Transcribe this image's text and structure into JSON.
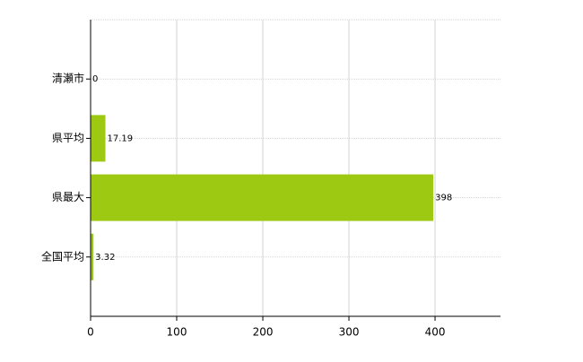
{
  "chart_data": {
    "type": "bar",
    "orientation": "horizontal",
    "categories": [
      "清瀬市",
      "県平均",
      "県最大",
      "全国平均"
    ],
    "values": [
      0,
      17.19,
      398,
      3.32
    ],
    "color": "#9dc913",
    "xlim": [
      0,
      476
    ],
    "xticks": [
      0,
      100,
      200,
      300,
      400
    ],
    "grid": true
  }
}
